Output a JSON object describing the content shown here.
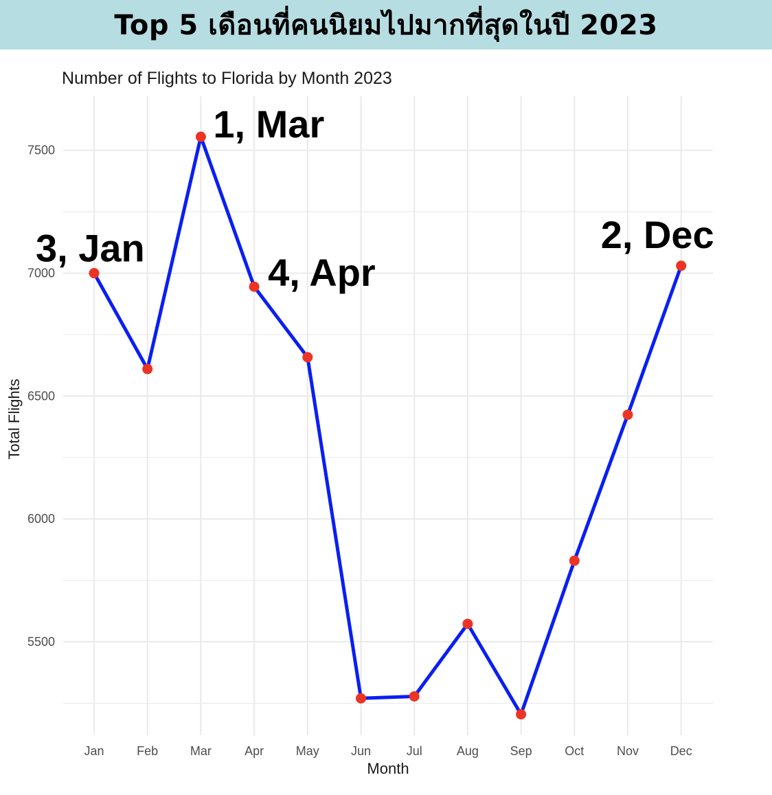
{
  "banner": {
    "title": "Top 5 เดือนที่คนนิยมไปมากที่สุดในปี 2023"
  },
  "colors": {
    "banner_bg": "#b6dde2",
    "line": "#0a1ff2",
    "point": "#ec3425",
    "grid": "#ebebeb"
  },
  "chart_data": {
    "type": "line",
    "title": "Number of Flights to Florida by Month 2023",
    "xlabel": "Month",
    "ylabel": "Total Flights",
    "categories": [
      "Jan",
      "Feb",
      "Mar",
      "Apr",
      "May",
      "Jun",
      "Jul",
      "Aug",
      "Sep",
      "Oct",
      "Nov",
      "Dec"
    ],
    "series": [
      {
        "values": [
          7000,
          6610,
          7555,
          6945,
          6658,
          5270,
          5278,
          5573,
          5205,
          5830,
          6424,
          7030
        ]
      }
    ],
    "ylim": [
      5120,
      7720
    ],
    "yticks": [
      5500,
      6000,
      6500,
      7000,
      7500
    ],
    "grid": true,
    "annotations": [
      {
        "index": 2,
        "text": "1, Mar"
      },
      {
        "index": 11,
        "text": "2, Dec"
      },
      {
        "index": 0,
        "text": "3, Jan"
      },
      {
        "index": 3,
        "text": "4, Apr"
      }
    ]
  }
}
